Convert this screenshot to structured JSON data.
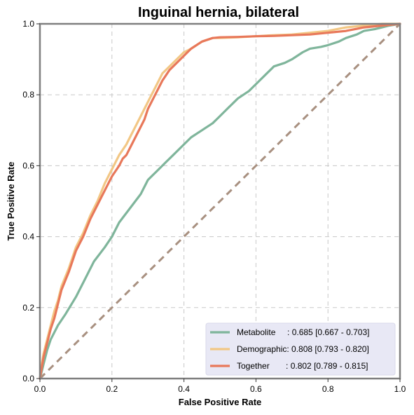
{
  "chart_data": {
    "type": "line",
    "title": "Inguinal hernia, bilateral",
    "xlabel": "False Positive Rate",
    "ylabel": "True Positive Rate",
    "xlim": [
      0,
      1
    ],
    "ylim": [
      0,
      1
    ],
    "xticks": [
      "0.0",
      "0.2",
      "0.4",
      "0.6",
      "0.8",
      "1.0"
    ],
    "yticks": [
      "0.0",
      "0.2",
      "0.4",
      "0.6",
      "0.8",
      "1.0"
    ],
    "grid": true,
    "legend_position": "lower-right",
    "series": [
      {
        "name": "Metabolite",
        "legend_label": "Metabolite     : 0.685 [0.667 - 0.703]",
        "color": "#7fb59b",
        "x": [
          0,
          0.005,
          0.01,
          0.02,
          0.03,
          0.05,
          0.07,
          0.1,
          0.12,
          0.15,
          0.18,
          0.2,
          0.22,
          0.25,
          0.28,
          0.3,
          0.33,
          0.35,
          0.37,
          0.4,
          0.42,
          0.45,
          0.48,
          0.5,
          0.52,
          0.55,
          0.58,
          0.6,
          0.63,
          0.65,
          0.68,
          0.7,
          0.73,
          0.75,
          0.78,
          0.8,
          0.83,
          0.85,
          0.88,
          0.9,
          0.93,
          0.95,
          0.97,
          1.0
        ],
        "y": [
          0,
          0.02,
          0.04,
          0.08,
          0.11,
          0.15,
          0.18,
          0.23,
          0.27,
          0.33,
          0.37,
          0.4,
          0.44,
          0.48,
          0.52,
          0.56,
          0.59,
          0.61,
          0.63,
          0.66,
          0.68,
          0.7,
          0.72,
          0.74,
          0.76,
          0.79,
          0.81,
          0.83,
          0.86,
          0.88,
          0.89,
          0.9,
          0.92,
          0.93,
          0.935,
          0.94,
          0.95,
          0.96,
          0.97,
          0.98,
          0.985,
          0.99,
          0.995,
          1.0
        ]
      },
      {
        "name": "Demographic",
        "legend_label": "Demographic: 0.808 [0.793 - 0.820]",
        "color": "#f2c785",
        "x": [
          0,
          0.005,
          0.01,
          0.02,
          0.03,
          0.04,
          0.05,
          0.06,
          0.08,
          0.1,
          0.12,
          0.14,
          0.16,
          0.18,
          0.2,
          0.22,
          0.24,
          0.25,
          0.27,
          0.29,
          0.3,
          0.32,
          0.34,
          0.36,
          0.38,
          0.4,
          0.42,
          0.45,
          0.48,
          0.5,
          0.55,
          0.6,
          0.65,
          0.7,
          0.75,
          0.8,
          0.85,
          0.9,
          0.95,
          1.0
        ],
        "y": [
          0,
          0.04,
          0.07,
          0.11,
          0.15,
          0.19,
          0.22,
          0.26,
          0.31,
          0.37,
          0.41,
          0.46,
          0.5,
          0.55,
          0.59,
          0.63,
          0.66,
          0.68,
          0.72,
          0.76,
          0.78,
          0.82,
          0.86,
          0.88,
          0.9,
          0.92,
          0.93,
          0.95,
          0.96,
          0.96,
          0.962,
          0.965,
          0.968,
          0.97,
          0.975,
          0.98,
          0.99,
          0.995,
          1.0,
          1.0
        ]
      },
      {
        "name": "Together",
        "legend_label": "Together       : 0.802 [0.789 - 0.815]",
        "color": "#e8785a",
        "x": [
          0,
          0.005,
          0.01,
          0.02,
          0.03,
          0.04,
          0.05,
          0.06,
          0.08,
          0.1,
          0.12,
          0.14,
          0.16,
          0.18,
          0.2,
          0.22,
          0.23,
          0.24,
          0.25,
          0.27,
          0.29,
          0.3,
          0.32,
          0.34,
          0.36,
          0.38,
          0.4,
          0.42,
          0.45,
          0.48,
          0.5,
          0.55,
          0.6,
          0.65,
          0.7,
          0.75,
          0.8,
          0.85,
          0.9,
          0.95,
          1.0
        ],
        "y": [
          0,
          0.03,
          0.06,
          0.1,
          0.14,
          0.17,
          0.21,
          0.25,
          0.3,
          0.36,
          0.4,
          0.45,
          0.49,
          0.53,
          0.57,
          0.6,
          0.62,
          0.63,
          0.65,
          0.69,
          0.73,
          0.76,
          0.8,
          0.84,
          0.87,
          0.89,
          0.91,
          0.93,
          0.95,
          0.96,
          0.962,
          0.963,
          0.965,
          0.966,
          0.968,
          0.97,
          0.975,
          0.98,
          0.99,
          0.995,
          1.0
        ]
      }
    ],
    "reference_line": {
      "x": [
        0,
        1
      ],
      "y": [
        0,
        1
      ],
      "color": "#a89080",
      "style": "dashed"
    },
    "legend_background": "#e8e8f5"
  }
}
